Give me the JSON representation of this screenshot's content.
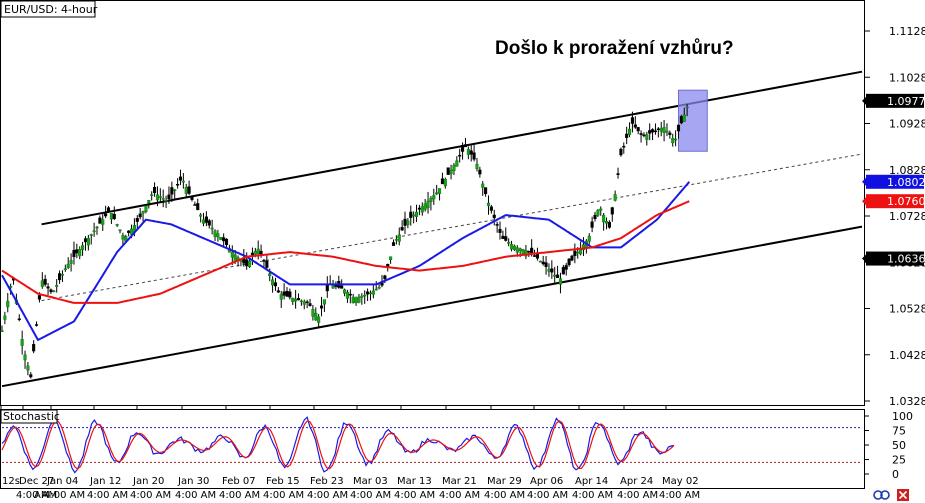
{
  "chart_data": {
    "type": "candlestick",
    "symbol_label": "EUR/USD: 4-hour",
    "annotation": "Došlo k proražení vzhůru?",
    "indicator_label": "Stochastic",
    "price_axis": {
      "min": 1.0328,
      "max": 1.1128,
      "ticks": [
        "1.1128",
        "1.1028",
        "1.0928",
        "1.0828",
        "1.0728",
        "1.0628",
        "1.0528",
        "1.0428",
        "1.0328"
      ]
    },
    "price_tags": [
      {
        "label": "1.0977",
        "value": 1.0977,
        "kind": "last-price",
        "bg": "#000000",
        "fg": "#ffffff"
      },
      {
        "label": "1.0802",
        "value": 1.0802,
        "kind": "moving-average-blue",
        "bg": "#1010e0",
        "fg": "#ffffff"
      },
      {
        "label": "1.0760",
        "value": 1.076,
        "kind": "moving-average-red",
        "bg": "#ee1111",
        "fg": "#ffffff"
      },
      {
        "label": "1.0636",
        "value": 1.0636,
        "kind": "channel-low",
        "bg": "#000000",
        "fg": "#ffffff"
      }
    ],
    "stochastic_axis": {
      "min": 0,
      "max": 100,
      "ticks": [
        "100",
        "75",
        "50",
        "25",
        "0"
      ],
      "levels": [
        80,
        20
      ]
    },
    "x_tick_labels": [
      "12s",
      "Dec 27",
      "Jan 04",
      "Jan 12",
      "Jan 20",
      "Jan 30",
      "Feb 07",
      "Feb 15",
      "Feb 23",
      "Mar 03",
      "Mar 13",
      "Mar 21",
      "Mar 29",
      "Apr 06",
      "Apr 14",
      "Apr 24",
      "May 02"
    ],
    "x_tick_time_labels": [
      "AM",
      "4:00 AM",
      "4:00 AM",
      "4:00 AM",
      "4:00 AM",
      "4:00 AM",
      "4:00 AM",
      "4:00 AM",
      "4:00 AM",
      "4:00 AM",
      "4:00 AM",
      "4:00 AM",
      "4:00 AM",
      "4:00 AM",
      "4:00 AM",
      "4:00 AM",
      "4:00 AM"
    ],
    "price_path": [
      [
        0,
        1.048
      ],
      [
        3,
        1.06
      ],
      [
        6,
        1.044
      ],
      [
        8,
        1.038
      ],
      [
        11,
        1.059
      ],
      [
        14,
        1.056
      ],
      [
        18,
        1.062
      ],
      [
        22,
        1.066
      ],
      [
        26,
        1.07
      ],
      [
        30,
        1.074
      ],
      [
        34,
        1.068
      ],
      [
        38,
        1.072
      ],
      [
        42,
        1.078
      ],
      [
        46,
        1.076
      ],
      [
        50,
        1.081
      ],
      [
        53,
        1.076
      ],
      [
        56,
        1.072
      ],
      [
        60,
        1.069
      ],
      [
        64,
        1.065
      ],
      [
        68,
        1.062
      ],
      [
        71,
        1.066
      ],
      [
        74,
        1.061
      ],
      [
        77,
        1.056
      ],
      [
        81,
        1.055
      ],
      [
        85,
        1.054
      ],
      [
        88,
        1.051
      ],
      [
        91,
        1.058
      ],
      [
        95,
        1.057
      ],
      [
        98,
        1.055
      ],
      [
        102,
        1.056
      ],
      [
        106,
        1.058
      ],
      [
        109,
        1.067
      ],
      [
        113,
        1.072
      ],
      [
        117,
        1.075
      ],
      [
        121,
        1.078
      ],
      [
        125,
        1.083
      ],
      [
        129,
        1.088
      ],
      [
        132,
        1.084
      ],
      [
        135,
        1.076
      ],
      [
        139,
        1.068
      ],
      [
        143,
        1.066
      ],
      [
        147,
        1.065
      ],
      [
        151,
        1.062
      ],
      [
        155,
        1.059
      ],
      [
        159,
        1.064
      ],
      [
        163,
        1.068
      ],
      [
        166,
        1.075
      ],
      [
        169,
        1.07
      ],
      [
        172,
        1.086
      ],
      [
        175,
        1.093
      ],
      [
        178,
        1.09
      ],
      [
        181,
        1.091
      ],
      [
        184,
        1.092
      ],
      [
        187,
        1.089
      ],
      [
        191,
        1.0977
      ]
    ],
    "moving_average_blue": [
      [
        0,
        1.06
      ],
      [
        10,
        1.046
      ],
      [
        20,
        1.05
      ],
      [
        32,
        1.065
      ],
      [
        40,
        1.072
      ],
      [
        47,
        1.071
      ],
      [
        56,
        1.068
      ],
      [
        68,
        1.064
      ],
      [
        80,
        1.058
      ],
      [
        92,
        1.058
      ],
      [
        104,
        1.058
      ],
      [
        116,
        1.062
      ],
      [
        128,
        1.068
      ],
      [
        140,
        1.073
      ],
      [
        152,
        1.072
      ],
      [
        164,
        1.066
      ],
      [
        172,
        1.066
      ],
      [
        182,
        1.072
      ],
      [
        191,
        1.0802
      ]
    ],
    "moving_average_red": [
      [
        0,
        1.061
      ],
      [
        10,
        1.056
      ],
      [
        20,
        1.054
      ],
      [
        32,
        1.054
      ],
      [
        44,
        1.056
      ],
      [
        56,
        1.06
      ],
      [
        68,
        1.064
      ],
      [
        80,
        1.065
      ],
      [
        92,
        1.064
      ],
      [
        104,
        1.062
      ],
      [
        116,
        1.061
      ],
      [
        128,
        1.062
      ],
      [
        140,
        1.064
      ],
      [
        152,
        1.065
      ],
      [
        164,
        1.066
      ],
      [
        172,
        1.068
      ],
      [
        182,
        1.073
      ],
      [
        191,
        1.076
      ]
    ],
    "channel_upper": [
      [
        11,
        1.071
      ],
      [
        239,
        1.104
      ]
    ],
    "channel_mid": [
      [
        11,
        1.0545
      ],
      [
        239,
        1.0862
      ]
    ],
    "channel_lower": [
      [
        0,
        1.036
      ],
      [
        239,
        1.0705
      ]
    ],
    "highlight_box": {
      "from": 188,
      "to": 196,
      "low": 1.0868,
      "high": 1.1,
      "color": "#8888ee"
    },
    "bar_count": 239
  }
}
